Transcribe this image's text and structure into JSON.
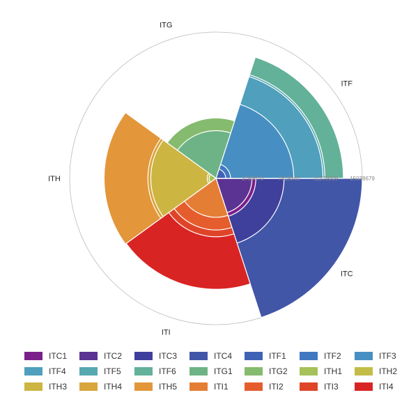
{
  "chart_data": {
    "type": "polar-bar",
    "categories": [
      "ITC",
      "ITF",
      "ITG",
      "ITH",
      "ITI"
    ],
    "radial_axis": {
      "min": 0,
      "max": 15038679,
      "tick_labels": [
        "0",
        "3759670",
        "7519340",
        "11279009",
        "15038679"
      ]
    },
    "grid": true,
    "legend_position": "bottom",
    "series": [
      {
        "name": "ITC1",
        "category": "ITC",
        "value": 4100000,
        "color": "#7b1f8a"
      },
      {
        "name": "ITC2",
        "category": "ITC",
        "value": 3700000,
        "color": "#5b3392"
      },
      {
        "name": "ITC3",
        "category": "ITC",
        "value": 7000000,
        "color": "#3f3f9c"
      },
      {
        "name": "ITC4",
        "category": "ITC",
        "value": 15038679,
        "color": "#4256a8"
      },
      {
        "name": "ITF1",
        "category": "ITF",
        "value": 1000000,
        "color": "#3f62b5"
      },
      {
        "name": "ITF2",
        "category": "ITF",
        "value": 1500000,
        "color": "#4178c0"
      },
      {
        "name": "ITF3",
        "category": "ITF",
        "value": 8000000,
        "color": "#478fc2"
      },
      {
        "name": "ITF4",
        "category": "ITF",
        "value": 11000000,
        "color": "#4f9fbd"
      },
      {
        "name": "ITF5",
        "category": "ITF",
        "value": 11200000,
        "color": "#57a8b0"
      },
      {
        "name": "ITF6",
        "category": "ITF",
        "value": 13100000,
        "color": "#63b199"
      },
      {
        "name": "ITG1",
        "category": "ITG",
        "value": 4900000,
        "color": "#6db385"
      },
      {
        "name": "ITG2",
        "category": "ITG",
        "value": 6200000,
        "color": "#85bb6e"
      },
      {
        "name": "ITH1",
        "category": "ITH",
        "value": 700000,
        "color": "#a6c15a"
      },
      {
        "name": "ITH2",
        "category": "ITH",
        "value": 900000,
        "color": "#c2bd48"
      },
      {
        "name": "ITH3",
        "category": "ITH",
        "value": 6700000,
        "color": "#cdb542"
      },
      {
        "name": "ITH4",
        "category": "ITH",
        "value": 7000000,
        "color": "#d9a53d"
      },
      {
        "name": "ITH5",
        "category": "ITH",
        "value": 11500000,
        "color": "#e3963a"
      },
      {
        "name": "ITI1",
        "category": "ITI",
        "value": 4000000,
        "color": "#e57e35"
      },
      {
        "name": "ITI2",
        "category": "ITI",
        "value": 5300000,
        "color": "#e55d2c"
      },
      {
        "name": "ITI3",
        "category": "ITI",
        "value": 6000000,
        "color": "#e04428"
      },
      {
        "name": "ITI4",
        "category": "ITI",
        "value": 11400000,
        "color": "#d92424"
      }
    ]
  }
}
